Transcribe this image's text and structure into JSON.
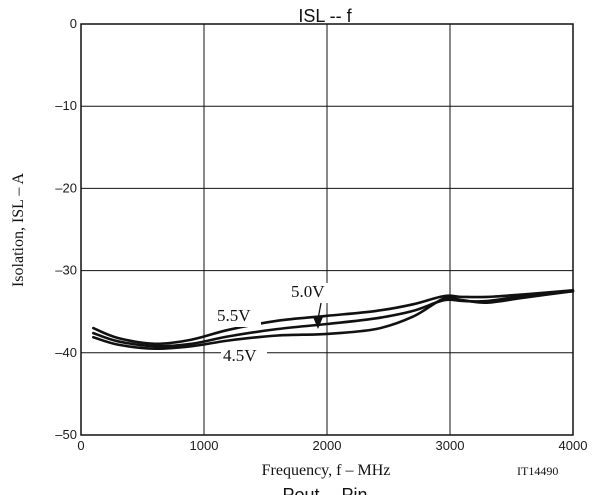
{
  "chart_data": {
    "type": "line",
    "title": "ISL -- f",
    "xlabel": "Frequency, f  –  MHz",
    "ylabel": "Isolation, ISL  –  A",
    "xlim": [
      0,
      4000
    ],
    "ylim": [
      -50,
      0
    ],
    "x_ticks": [
      "0",
      "1000",
      "2000",
      "3000",
      "4000"
    ],
    "y_ticks": [
      "0",
      "–10",
      "–20",
      "–30",
      "–40",
      "–50"
    ],
    "grid": true,
    "series": [
      {
        "name": "5.5V",
        "x": [
          100,
          300,
          600,
          900,
          1200,
          1600,
          2000,
          2400,
          2700,
          2950,
          3100,
          3300,
          3600,
          4000
        ],
        "y": [
          -37.0,
          -38.2,
          -38.9,
          -38.4,
          -37.2,
          -36.1,
          -35.5,
          -34.9,
          -34.1,
          -33.1,
          -33.2,
          -33.2,
          -32.9,
          -32.4
        ]
      },
      {
        "name": "5.0V",
        "x": [
          100,
          300,
          600,
          900,
          1200,
          1600,
          2000,
          2400,
          2700,
          2950,
          3100,
          3300,
          3600,
          4000
        ],
        "y": [
          -37.6,
          -38.6,
          -39.2,
          -38.9,
          -38.0,
          -37.1,
          -36.5,
          -35.8,
          -34.9,
          -33.6,
          -33.7,
          -33.7,
          -33.1,
          -32.5
        ]
      },
      {
        "name": "4.5V",
        "x": [
          100,
          300,
          600,
          900,
          1200,
          1600,
          2000,
          2400,
          2700,
          2950,
          3100,
          3300,
          3600,
          4000
        ],
        "y": [
          -38.1,
          -39.0,
          -39.5,
          -39.2,
          -38.5,
          -37.9,
          -37.7,
          -37.1,
          -35.6,
          -33.4,
          -33.6,
          -33.9,
          -33.3,
          -32.5
        ]
      }
    ],
    "annotations": [
      "5.5V",
      "5.0V",
      "4.5V"
    ],
    "code": "IT14490",
    "bottom_text": "Pout  --  Pin"
  }
}
